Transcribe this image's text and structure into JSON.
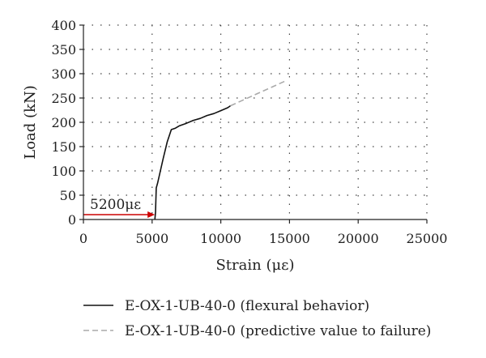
{
  "chart_data": {
    "type": "line",
    "xlabel": "Strain (με)",
    "ylabel": "Load (kN)",
    "xlim": [
      0,
      25000
    ],
    "ylim": [
      0,
      400
    ],
    "xticks": [
      0,
      5000,
      10000,
      15000,
      20000,
      25000
    ],
    "yticks": [
      0,
      50,
      100,
      150,
      200,
      250,
      300,
      350,
      400
    ],
    "grid": "dotted",
    "legend": "bottom",
    "series": [
      {
        "name": "E-OX-1-UB-40-0 (flexural behavior)",
        "style": "solid",
        "color": "#111111",
        "x": [
          5200,
          5250,
          5300,
          5400,
          5600,
          5800,
          6100,
          6400,
          6700,
          7000,
          7500,
          8000,
          8500,
          9000,
          9500,
          10000,
          10500,
          10700
        ],
        "y": [
          0,
          15,
          65,
          75,
          100,
          125,
          160,
          185,
          188,
          193,
          198,
          204,
          208,
          214,
          218,
          224,
          230,
          234
        ]
      },
      {
        "name": "E-OX-1-UB-40-0 (predictive value to failure)",
        "style": "dashed",
        "color": "#aaaaaa",
        "x": [
          10700,
          14700
        ],
        "y": [
          234,
          285
        ]
      }
    ],
    "annotations": [
      {
        "text": "5200με",
        "x": 5200,
        "y": 10,
        "arrow_color": "#cc0000"
      }
    ]
  }
}
